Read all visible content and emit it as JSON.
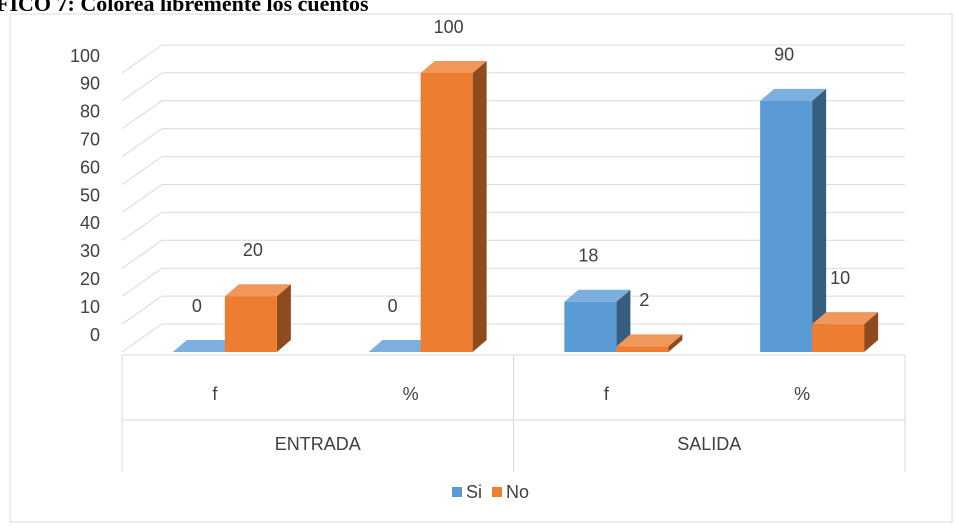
{
  "chart_data": {
    "type": "bar3d",
    "title": "FICO 7: Colorea libremente los cuentos",
    "groups": [
      "ENTRADA",
      "SALIDA"
    ],
    "categories": [
      "f",
      "%",
      "f",
      "%"
    ],
    "series": [
      {
        "name": "Si",
        "color": "#5b9bd5",
        "values": [
          0,
          0,
          18,
          90
        ]
      },
      {
        "name": "No",
        "color": "#ed7d31",
        "values": [
          20,
          100,
          2,
          10
        ]
      }
    ],
    "ylim": [
      0,
      100
    ],
    "yticks": [
      0,
      10,
      20,
      30,
      40,
      50,
      60,
      70,
      80,
      90,
      100
    ],
    "grid": true,
    "legend": "bottom"
  }
}
